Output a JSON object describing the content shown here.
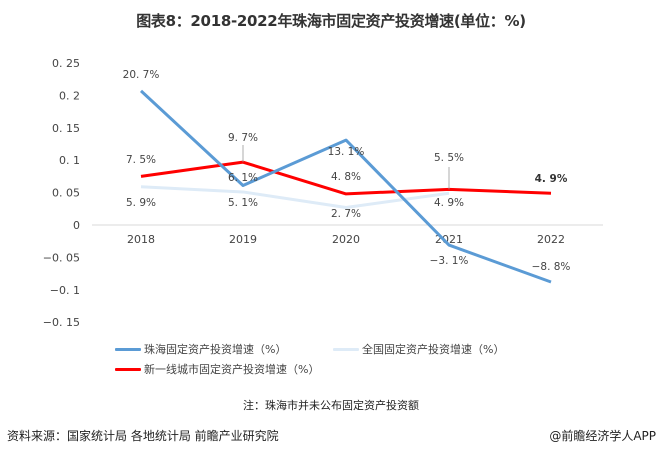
{
  "title": "图表8：2018-2022年珠海市固定资产投资增速(单位：%)",
  "note": "注：珠海市并未公布固定资产投资额",
  "footer": {
    "source": "资料来源：国家统计局 各地统计局 前瞻产业研究院",
    "brand": "@前瞻经济学人APP"
  },
  "legend": [
    {
      "label": "珠海固定资产投资增速（%）",
      "color": "#5B9BD5"
    },
    {
      "label": "全国固定资产投资增速（%）",
      "color": "#DEEBF7"
    },
    {
      "label": "新一线城市固定资产投资增速（%）",
      "color": "#FF0000"
    }
  ],
  "chart_data": {
    "type": "line",
    "title": "图表8：2018-2022年珠海市固定资产投资增速(单位：%)",
    "xlabel": "",
    "ylabel": "",
    "categories": [
      "2018",
      "2019",
      "2020",
      "2021",
      "2022"
    ],
    "y_ticks": [
      "0.25",
      "0.2",
      "0.15",
      "0.1",
      "0.05",
      "0",
      "-0.05",
      "-0.1",
      "-0.15"
    ],
    "ylim": [
      -0.15,
      0.25
    ],
    "grid": false,
    "legend_position": "bottom",
    "series": [
      {
        "name": "珠海固定资产投资增速（%）",
        "color": "#5B9BD5",
        "values": [
          0.207,
          0.061,
          0.131,
          -0.031,
          -0.088
        ],
        "labels": [
          "20.7%",
          "6.1%",
          "13.1%",
          "-3.1%",
          "-8.8%"
        ]
      },
      {
        "name": "全国固定资产投资增速（%）",
        "color": "#DEEBF7",
        "values": [
          0.059,
          0.051,
          0.027,
          0.049,
          null
        ],
        "labels": [
          "5.9%",
          "5.1%",
          "2.7%",
          "4.9%",
          ""
        ]
      },
      {
        "name": "新一线城市固定资产投资增速（%）",
        "color": "#FF0000",
        "values": [
          0.075,
          0.097,
          0.048,
          0.055,
          0.049
        ],
        "labels": [
          "7.5%",
          "9.7%",
          "4.8%",
          "5.5%",
          "4.9%"
        ]
      }
    ]
  }
}
